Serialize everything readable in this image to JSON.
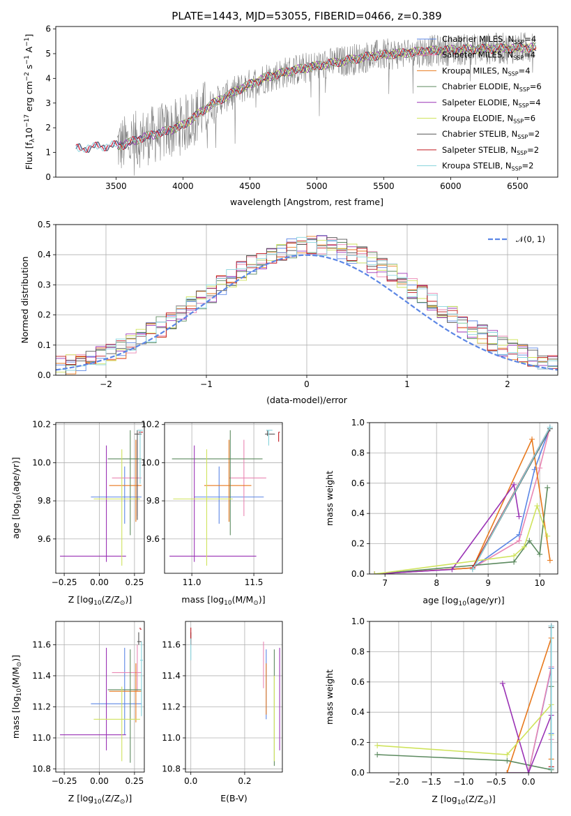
{
  "figure": {
    "title": "PLATE=1443, MJD=53055, FIBERID=0466, z=0.389"
  },
  "models": [
    {
      "name": "Chabrier MILES",
      "nssp": "4",
      "color": "#5b86e5"
    },
    {
      "name": "Salpeter MILES",
      "nssp": "4",
      "color": "#e986b3"
    },
    {
      "name": "Kroupa MILES",
      "nssp": "4",
      "color": "#e8791d"
    },
    {
      "name": "Chabrier ELODIE",
      "nssp": "6",
      "color": "#5c8a5f"
    },
    {
      "name": "Salpeter ELODIE",
      "nssp": "4",
      "color": "#9a32b5"
    },
    {
      "name": "Kroupa ELODIE",
      "nssp": "6",
      "color": "#cfe35c"
    },
    {
      "name": "Chabrier STELIB",
      "nssp": "2",
      "color": "#555555"
    },
    {
      "name": "Salpeter STELIB",
      "nssp": "2",
      "color": "#c0171f"
    },
    {
      "name": "Kroupa STELIB",
      "nssp": "2",
      "color": "#86d3dc"
    }
  ],
  "chart_data": [
    {
      "id": "spectrum",
      "type": "line",
      "xlabel": "wavelength [Angstrom, rest frame]",
      "ylabel": "Flux [f",
      "ylabel_sub": "λ",
      "ylabel_rest": "10",
      "ylabel_exp": "−17",
      "ylabel_unit1": " erg cm",
      "ylabel_exp2": "−2",
      "ylabel_unit2": " s",
      "ylabel_exp3": "−1",
      "ylabel_unit3": " A",
      "ylabel_exp4": "−1",
      "ylabel_close": "]",
      "xlim": [
        3050,
        6800
      ],
      "ylim": [
        0,
        6.1
      ],
      "xticks": [
        3500,
        4000,
        4500,
        5000,
        5500,
        6000,
        6500
      ],
      "yticks": [
        0,
        1,
        2,
        3,
        4,
        5,
        6
      ],
      "data_color": "#808080",
      "data_range": [
        3510,
        6620
      ],
      "model_range": [
        3200,
        6640
      ],
      "continuum_points": [
        [
          3200,
          1.15
        ],
        [
          3400,
          1.25
        ],
        [
          3550,
          1.3
        ],
        [
          3700,
          1.6
        ],
        [
          3900,
          1.9
        ],
        [
          4000,
          2.1
        ],
        [
          4200,
          2.9
        ],
        [
          4400,
          3.5
        ],
        [
          4600,
          4.0
        ],
        [
          4800,
          4.3
        ],
        [
          5000,
          4.5
        ],
        [
          5200,
          4.7
        ],
        [
          5400,
          4.9
        ],
        [
          5600,
          5.0
        ],
        [
          5800,
          5.1
        ],
        [
          6000,
          5.15
        ],
        [
          6300,
          5.2
        ],
        [
          6640,
          5.25
        ]
      ]
    },
    {
      "id": "residuals",
      "type": "step",
      "xlabel": "(data-model)/error",
      "ylabel": "Normed distribution",
      "xlim": [
        -2.5,
        2.5
      ],
      "ylim": [
        0,
        0.5
      ],
      "xticks": [
        -2,
        -1,
        0,
        1,
        2
      ],
      "yticks": [
        0.0,
        0.1,
        0.2,
        0.3,
        0.4,
        0.5
      ],
      "normal_label": "𝒩(0, 1)",
      "normal_color": "#5b86e5",
      "bin_width": 0.1
    },
    {
      "id": "age-vs-Z",
      "type": "errorbar",
      "xlabel": "Z [log",
      "xlabel_sub": "10",
      "xlabel_rest": "(Z/Z",
      "xlabel_sub2": "⊙",
      "xlabel_close": ")]",
      "ylabel": "age  [log",
      "ylabel_sub": "10",
      "ylabel_rest": "(age/yr)]",
      "xlim": [
        -0.31,
        0.32
      ],
      "ylim": [
        9.42,
        10.21
      ],
      "xticks": [
        -0.25,
        0.0,
        0.25
      ],
      "yticks": [
        9.6,
        9.8,
        10.0,
        10.2
      ],
      "points": [
        {
          "m": 0,
          "x": 0.18,
          "xerr": [
            0.24,
            0.12
          ],
          "y": 9.82,
          "yerr": [
            0.14,
            0.16
          ]
        },
        {
          "m": 1,
          "x": 0.27,
          "xerr": [
            0.18,
            0.03
          ],
          "y": 9.92,
          "yerr": [
            0.2,
            0.2
          ]
        },
        {
          "m": 2,
          "x": 0.26,
          "xerr": [
            0.19,
            0.04
          ],
          "y": 9.88,
          "yerr": [
            0.19,
            0.24
          ]
        },
        {
          "m": 3,
          "x": 0.22,
          "xerr": [
            0.16,
            0.08
          ],
          "y": 10.02,
          "yerr": [
            0.4,
            0.15
          ]
        },
        {
          "m": 4,
          "x": 0.05,
          "xerr": [
            0.33,
            0.14
          ],
          "y": 9.51,
          "yerr": [
            0.03,
            0.58
          ]
        },
        {
          "m": 5,
          "x": 0.16,
          "xerr": [
            0.2,
            0.13
          ],
          "y": 9.81,
          "yerr": [
            0.35,
            0.26
          ]
        },
        {
          "m": 6,
          "x": 0.27,
          "xerr": [
            0.02,
            0.03
          ],
          "y": 10.15,
          "yerr": [
            0.45,
            0.02
          ]
        },
        {
          "m": 7,
          "x": 0.29,
          "xerr": [
            0.01,
            0.02
          ],
          "y": 10.16,
          "yerr": [
            0.01,
            0.0
          ]
        },
        {
          "m": 8,
          "x": 0.29,
          "xerr": [
            0.02,
            0.02
          ],
          "y": 10.17,
          "yerr": [
            0.28,
            0.0
          ]
        }
      ]
    },
    {
      "id": "age-vs-mass",
      "type": "errorbar",
      "xlabel": "mass [log",
      "xlabel_sub": "10",
      "xlabel_rest": "(M/M",
      "xlabel_sub2": "⊙",
      "xlabel_close": ")]",
      "xlim": [
        10.78,
        11.73
      ],
      "ylim": [
        9.42,
        10.21
      ],
      "xticks": [
        11.0,
        11.5
      ],
      "yticks": [
        9.6,
        9.8,
        10.0,
        10.2
      ],
      "points": [
        {
          "m": 0,
          "x": 11.22,
          "xerr": [
            0.2,
            0.36
          ],
          "y": 9.82,
          "yerr": [
            0.14,
            0.16
          ]
        },
        {
          "m": 1,
          "x": 11.42,
          "xerr": [
            0.12,
            0.18
          ],
          "y": 9.92,
          "yerr": [
            0.2,
            0.2
          ]
        },
        {
          "m": 2,
          "x": 11.3,
          "xerr": [
            0.2,
            0.18
          ],
          "y": 9.88,
          "yerr": [
            0.19,
            0.24
          ]
        },
        {
          "m": 3,
          "x": 11.31,
          "xerr": [
            0.47,
            0.26
          ],
          "y": 10.02,
          "yerr": [
            0.4,
            0.15
          ]
        },
        {
          "m": 4,
          "x": 11.02,
          "xerr": [
            0.2,
            0.5
          ],
          "y": 9.51,
          "yerr": [
            0.03,
            0.58
          ]
        },
        {
          "m": 5,
          "x": 11.12,
          "xerr": [
            0.27,
            0.21
          ],
          "y": 9.81,
          "yerr": [
            0.35,
            0.26
          ]
        },
        {
          "m": 6,
          "x": 11.61,
          "xerr": [
            0.02,
            0.06
          ],
          "y": 10.15,
          "yerr": [
            0.01,
            0.02
          ]
        },
        {
          "m": 7,
          "x": 11.7,
          "xerr": [
            0.0,
            0.01
          ],
          "y": 10.16,
          "yerr": [
            0.05,
            0.0
          ]
        },
        {
          "m": 8,
          "x": 11.62,
          "xerr": [
            0.02,
            0.03
          ],
          "y": 10.17,
          "yerr": [
            0.08,
            0.0
          ]
        }
      ]
    },
    {
      "id": "mass-weight-vs-age",
      "type": "line",
      "xlabel": "age  [log",
      "xlabel_sub": "10",
      "xlabel_rest": "(age/yr)]",
      "ylabel": "mass weight",
      "xlim": [
        6.7,
        10.35
      ],
      "ylim": [
        0,
        1.0
      ],
      "xticks": [
        7,
        8,
        9,
        10
      ],
      "yticks": [
        0.0,
        0.2,
        0.4,
        0.6,
        0.8,
        1.0
      ],
      "series": [
        {
          "m": 0,
          "points": [
            [
              6.8,
              0.0
            ],
            [
              8.7,
              0.04
            ],
            [
              9.6,
              0.26
            ],
            [
              9.9,
              0.69
            ],
            [
              10.2,
              0.97
            ]
          ]
        },
        {
          "m": 1,
          "points": [
            [
              6.8,
              0.0
            ],
            [
              8.7,
              0.04
            ],
            [
              9.6,
              0.22
            ],
            [
              10.0,
              0.7
            ],
            [
              10.2,
              0.97
            ]
          ]
        },
        {
          "m": 2,
          "points": [
            [
              6.8,
              0.0
            ],
            [
              8.7,
              0.04
            ],
            [
              9.85,
              0.89
            ],
            [
              10.2,
              0.09
            ]
          ]
        },
        {
          "m": 3,
          "points": [
            [
              6.8,
              0.0
            ],
            [
              9.5,
              0.08
            ],
            [
              9.8,
              0.22
            ],
            [
              10.0,
              0.13
            ],
            [
              10.15,
              0.57
            ]
          ]
        },
        {
          "m": 4,
          "points": [
            [
              6.8,
              0.0
            ],
            [
              8.3,
              0.03
            ],
            [
              9.5,
              0.59
            ],
            [
              9.6,
              0.38
            ]
          ]
        },
        {
          "m": 5,
          "points": [
            [
              6.8,
              0.0
            ],
            [
              9.5,
              0.12
            ],
            [
              9.7,
              0.18
            ],
            [
              9.95,
              0.45
            ],
            [
              10.15,
              0.25
            ]
          ]
        },
        {
          "m": 6,
          "points": [
            [
              8.7,
              0.03
            ],
            [
              10.2,
              0.96
            ]
          ]
        },
        {
          "m": 7,
          "points": [
            [
              8.7,
              0.04
            ],
            [
              10.2,
              0.97
            ]
          ]
        },
        {
          "m": 8,
          "points": [
            [
              8.7,
              0.03
            ],
            [
              10.2,
              0.97
            ]
          ]
        }
      ]
    },
    {
      "id": "mass-vs-Z",
      "type": "errorbar",
      "xlabel": "Z [log",
      "xlabel_sub": "10",
      "xlabel_rest": "(Z/Z",
      "xlabel_sub2": "⊙",
      "xlabel_close": ")]",
      "ylabel": "mass [log",
      "ylabel_sub": "10",
      "ylabel_rest": "(M/M",
      "ylabel_sub2": "⊙",
      "ylabel_close": ")]",
      "xlim": [
        -0.31,
        0.32
      ],
      "ylim": [
        10.78,
        11.75
      ],
      "xticks": [
        -0.25,
        0.0,
        0.25
      ],
      "yticks": [
        10.8,
        11.0,
        11.2,
        11.4,
        11.6
      ],
      "points": [
        {
          "m": 0,
          "x": 0.18,
          "xerr": [
            0.24,
            0.12
          ],
          "y": 11.22,
          "yerr": [
            0.2,
            0.36
          ]
        },
        {
          "m": 1,
          "x": 0.27,
          "xerr": [
            0.18,
            0.03
          ],
          "y": 11.42,
          "yerr": [
            0.12,
            0.18
          ]
        },
        {
          "m": 2,
          "x": 0.26,
          "xerr": [
            0.19,
            0.04
          ],
          "y": 11.3,
          "yerr": [
            0.2,
            0.18
          ]
        },
        {
          "m": 3,
          "x": 0.22,
          "xerr": [
            0.16,
            0.08
          ],
          "y": 11.31,
          "yerr": [
            0.47,
            0.26
          ]
        },
        {
          "m": 4,
          "x": 0.05,
          "xerr": [
            0.33,
            0.14
          ],
          "y": 11.02,
          "yerr": [
            0.1,
            0.56
          ]
        },
        {
          "m": 5,
          "x": 0.16,
          "xerr": [
            0.2,
            0.13
          ],
          "y": 11.12,
          "yerr": [
            0.27,
            0.21
          ]
        },
        {
          "m": 6,
          "x": 0.28,
          "xerr": [
            0.01,
            0.02
          ],
          "y": 11.62,
          "yerr": [
            0.02,
            0.06
          ]
        },
        {
          "m": 7,
          "x": 0.29,
          "xerr": [
            0.0,
            0.01
          ],
          "y": 11.7,
          "yerr": [
            0.0,
            0.01
          ]
        },
        {
          "m": 8,
          "x": 0.3,
          "xerr": [
            0.01,
            0.01
          ],
          "y": 11.5,
          "yerr": [
            0.36,
            0.12
          ]
        }
      ]
    },
    {
      "id": "mass-vs-ebv",
      "type": "errorbar",
      "xlabel": "E(B-V)",
      "xlim": [
        -0.02,
        0.34
      ],
      "ylim": [
        10.78,
        11.75
      ],
      "xticks": [
        0.0,
        0.2
      ],
      "yticks": [
        10.8,
        11.0,
        11.2,
        11.4,
        11.6
      ],
      "points": [
        {
          "m": 0,
          "x": 0.28,
          "y": 11.22,
          "yerr": [
            0.1,
            0.35
          ]
        },
        {
          "m": 1,
          "x": 0.27,
          "y": 11.42,
          "yerr": [
            0.1,
            0.2
          ]
        },
        {
          "m": 2,
          "x": 0.28,
          "y": 11.3,
          "yerr": [
            0.15,
            0.18
          ]
        },
        {
          "m": 3,
          "x": 0.31,
          "y": 11.31,
          "yerr": [
            0.49,
            0.26
          ]
        },
        {
          "m": 4,
          "x": 0.33,
          "y": 11.02,
          "yerr": [
            0.1,
            0.56
          ]
        },
        {
          "m": 5,
          "x": 0.31,
          "y": 11.12,
          "yerr": [
            0.27,
            0.28
          ]
        },
        {
          "m": 6,
          "x": 0.0,
          "y": 11.62,
          "yerr": [
            0.02,
            0.06
          ]
        },
        {
          "m": 7,
          "x": 0.0,
          "y": 11.62,
          "yerr": [
            0.02,
            0.09
          ]
        },
        {
          "m": 8,
          "x": 0.0,
          "y": 11.57,
          "yerr": [
            0.07,
            0.07
          ]
        }
      ]
    },
    {
      "id": "mass-weight-vs-Z",
      "type": "line",
      "xlabel": "Z [log",
      "xlabel_sub": "10",
      "xlabel_rest": "(Z/Z",
      "xlabel_sub2": "⊙",
      "xlabel_close": ")]",
      "ylabel": "mass weight",
      "xlim": [
        -2.45,
        0.45
      ],
      "ylim": [
        0,
        1.0
      ],
      "xticks": [
        -2.0,
        -1.5,
        -1.0,
        -0.5,
        0.0
      ],
      "yticks": [
        0.0,
        0.2,
        0.4,
        0.6,
        0.8,
        1.0
      ],
      "series": [
        {
          "m": 0,
          "points": [
            [
              -0.33,
              0.0
            ],
            [
              0.0,
              0.0
            ],
            [
              0.35,
              0.69
            ],
            [
              0.35,
              0.26
            ],
            [
              0.35,
              0.97
            ]
          ]
        },
        {
          "m": 1,
          "points": [
            [
              -0.33,
              0.0
            ],
            [
              0.0,
              0.0
            ],
            [
              0.35,
              0.7
            ],
            [
              0.35,
              0.22
            ]
          ]
        },
        {
          "m": 2,
          "points": [
            [
              -0.33,
              0.0
            ],
            [
              0.35,
              0.89
            ],
            [
              0.35,
              0.09
            ]
          ]
        },
        {
          "m": 3,
          "points": [
            [
              -2.33,
              0.12
            ],
            [
              -0.33,
              0.08
            ],
            [
              0.35,
              0.02
            ],
            [
              0.35,
              0.57
            ]
          ]
        },
        {
          "m": 4,
          "points": [
            [
              -0.4,
              0.59
            ],
            [
              0.0,
              0.0
            ],
            [
              0.35,
              0.38
            ]
          ]
        },
        {
          "m": 5,
          "points": [
            [
              -2.33,
              0.18
            ],
            [
              -0.33,
              0.12
            ],
            [
              0.35,
              0.45
            ],
            [
              0.35,
              0.25
            ]
          ]
        },
        {
          "m": 6,
          "points": [
            [
              0.35,
              0.03
            ],
            [
              0.35,
              0.96
            ]
          ]
        },
        {
          "m": 7,
          "points": [
            [
              0.35,
              0.04
            ],
            [
              0.35,
              0.97
            ]
          ]
        },
        {
          "m": 8,
          "points": [
            [
              0.35,
              0.03
            ],
            [
              0.35,
              0.97
            ]
          ]
        }
      ]
    }
  ]
}
